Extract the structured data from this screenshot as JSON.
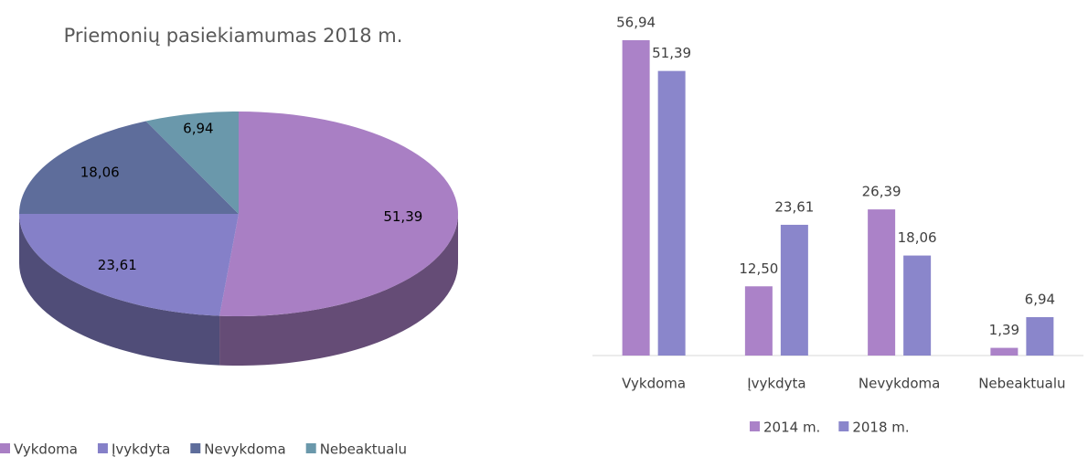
{
  "chart_data": [
    {
      "type": "pie",
      "title": "Priemonių pasiekiamumas 2018 m.",
      "categories": [
        "Vykdoma",
        "Įvykdyta",
        "Nevykdoma",
        "Nebeaktualu"
      ],
      "values": [
        51.39,
        23.61,
        18.06,
        6.94
      ],
      "value_labels": [
        "51,39",
        "23,61",
        "18,06",
        "6,94"
      ],
      "colors": [
        "#a97fc4",
        "#8580c8",
        "#5e6d9b",
        "#6a98ab"
      ]
    },
    {
      "type": "bar",
      "categories": [
        "Vykdoma",
        "Įvykdyta",
        "Nevykdoma",
        "Nebeaktualu"
      ],
      "series": [
        {
          "name": "2014 m.",
          "color": "#ab82c8",
          "values": [
            56.94,
            12.5,
            26.39,
            1.39
          ],
          "value_labels": [
            "56,94",
            "12,50",
            "26,39",
            "1,39"
          ]
        },
        {
          "name": "2018 m.",
          "color": "#8a86cb",
          "values": [
            51.39,
            23.61,
            18.06,
            6.94
          ],
          "value_labels": [
            "51,39",
            "23,61",
            "18,06",
            "6,94"
          ]
        }
      ]
    }
  ]
}
